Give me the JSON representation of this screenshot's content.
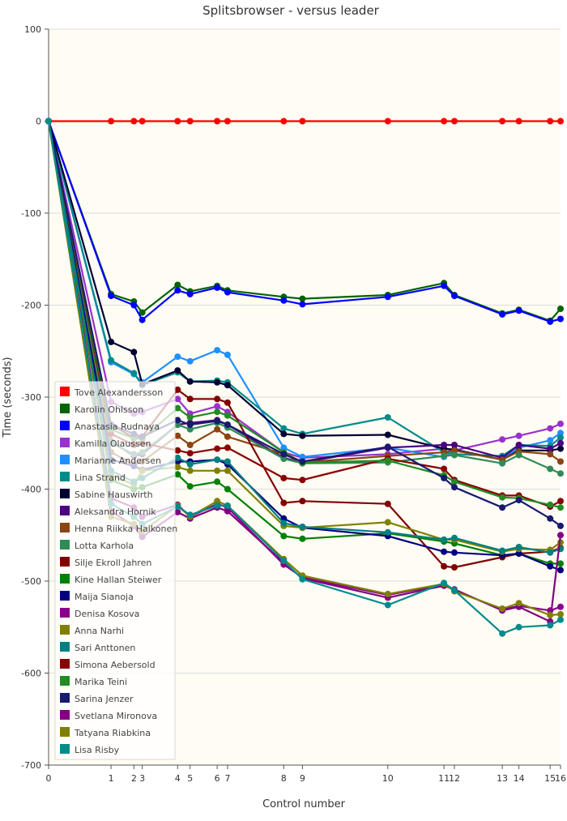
{
  "chart_data": {
    "type": "line",
    "title": "Splitsbrowser - versus leader",
    "xlabel": "Control number",
    "ylabel": "Time (seconds)",
    "xlim": [
      0,
      16
    ],
    "ylim": [
      -700,
      100
    ],
    "yticks": [
      100,
      0,
      -100,
      -200,
      -300,
      -400,
      -500,
      -600,
      -700
    ],
    "x": [
      0,
      1,
      2,
      3,
      4,
      5,
      6,
      7,
      8,
      9,
      10,
      11,
      12,
      13,
      14,
      15,
      16
    ],
    "x_cumulative": [
      0,
      30,
      41,
      45,
      62,
      68,
      81,
      86,
      113,
      122,
      163,
      190,
      195,
      218,
      226,
      241,
      246
    ],
    "grid": true,
    "legend_position": "bottom-left",
    "background_color": "#fffcf4",
    "series": [
      {
        "name": "Tove Alexandersson",
        "color": "#ff0000",
        "values": [
          0,
          0,
          0,
          0,
          0,
          0,
          0,
          0,
          0,
          0,
          0,
          0,
          0,
          0,
          0,
          0,
          0
        ]
      },
      {
        "name": "Karolin Ohlsson",
        "color": "#006400",
        "values": [
          0,
          -188,
          -196,
          -208,
          -178,
          -185,
          -179,
          -184,
          -191,
          -193,
          -189,
          -176,
          -189,
          -209,
          -205,
          -217,
          -204
        ]
      },
      {
        "name": "Anastasia Rudnaya",
        "color": "#0000ff",
        "values": [
          0,
          -190,
          -200,
          -216,
          -184,
          -188,
          -181,
          -186,
          -195,
          -199,
          -191,
          -179,
          -190,
          -210,
          -206,
          -218,
          -215
        ]
      },
      {
        "name": "Kamilla Olaussen",
        "color": "#9932cc",
        "values": [
          0,
          -305,
          -318,
          -316,
          -302,
          -318,
          -310,
          -316,
          -360,
          -366,
          -362,
          -356,
          -358,
          -346,
          -342,
          -334,
          -329
        ]
      },
      {
        "name": "Marianne Andersen",
        "color": "#1e90ff",
        "values": [
          0,
          -262,
          -275,
          -284,
          -256,
          -261,
          -249,
          -254,
          -355,
          -365,
          -355,
          -365,
          -358,
          -368,
          -355,
          -347,
          -339
        ]
      },
      {
        "name": "Lina Strand",
        "color": "#008b8b",
        "values": [
          0,
          -260,
          -274,
          -287,
          -273,
          -283,
          -282,
          -284,
          -334,
          -340,
          -322,
          -360,
          -362,
          -364,
          -352,
          -353,
          -344
        ]
      },
      {
        "name": "Sabine Hauswirth",
        "color": "#000033",
        "values": [
          0,
          -240,
          -251,
          -286,
          -271,
          -283,
          -284,
          -287,
          -340,
          -342,
          -341,
          -356,
          -357,
          -368,
          -358,
          -358,
          -356
        ]
      },
      {
        "name": "Aleksandra Hornik",
        "color": "#4b0082",
        "values": [
          0,
          -348,
          -364,
          -362,
          -330,
          -328,
          -325,
          -330,
          -366,
          -371,
          -355,
          -352,
          -352,
          -366,
          -352,
          -356,
          -350
        ]
      },
      {
        "name": "Henna Riikka Haikonen",
        "color": "#8b4513",
        "values": [
          0,
          -360,
          -373,
          -370,
          -342,
          -352,
          -335,
          -343,
          -362,
          -371,
          -364,
          -360,
          -358,
          -368,
          -359,
          -362,
          -370
        ]
      },
      {
        "name": "Lotta Karhola",
        "color": "#2e8b57",
        "values": [
          0,
          -350,
          -362,
          -360,
          -330,
          -335,
          -328,
          -333,
          -367,
          -372,
          -371,
          -364,
          -363,
          -372,
          -363,
          -378,
          -383
        ]
      },
      {
        "name": "Silje Ekroll Jahren",
        "color": "#800000",
        "values": [
          0,
          -330,
          -344,
          -343,
          -292,
          -302,
          -302,
          -306,
          -415,
          -413,
          -416,
          -484,
          -485,
          -474,
          -470,
          -468,
          -464
        ]
      },
      {
        "name": "Kine Hallan Steiwer",
        "color": "#008000",
        "values": [
          0,
          -390,
          -400,
          -398,
          -384,
          -397,
          -392,
          -400,
          -451,
          -454,
          -448,
          -457,
          -459,
          -472,
          -470,
          -481,
          -481
        ]
      },
      {
        "name": "Maija Sianoja",
        "color": "#000080",
        "values": [
          0,
          -368,
          -375,
          -379,
          -370,
          -370,
          -368,
          -373,
          -432,
          -442,
          -451,
          -468,
          -469,
          -472,
          -470,
          -484,
          -488
        ]
      },
      {
        "name": "Denisa Kosova",
        "color": "#8b008b",
        "values": [
          0,
          -410,
          -420,
          -430,
          -417,
          -430,
          -416,
          -420,
          -482,
          -496,
          -515,
          -504,
          -510,
          -531,
          -527,
          -532,
          -528
        ]
      },
      {
        "name": "Anna Narhi",
        "color": "#808000",
        "values": [
          0,
          -385,
          -395,
          -380,
          -376,
          -380,
          -380,
          -380,
          -440,
          -442,
          -436,
          -455,
          -455,
          -468,
          -465,
          -466,
          -458
        ]
      },
      {
        "name": "Sari Anttonen",
        "color": "#008080",
        "values": [
          0,
          -380,
          -392,
          -388,
          -366,
          -373,
          -368,
          -370,
          -437,
          -441,
          -447,
          -455,
          -453,
          -467,
          -463,
          -469,
          -465
        ]
      },
      {
        "name": "Simona Aebersold",
        "color": "#8b0000",
        "values": [
          0,
          -340,
          -352,
          -350,
          -358,
          -361,
          -356,
          -355,
          -388,
          -390,
          -367,
          -378,
          -390,
          -407,
          -407,
          -419,
          -413
        ]
      },
      {
        "name": "Marika Teini",
        "color": "#228b22",
        "values": [
          0,
          -335,
          -345,
          -345,
          -312,
          -322,
          -316,
          -320,
          -360,
          -371,
          -369,
          -385,
          -392,
          -409,
          -410,
          -417,
          -420
        ]
      },
      {
        "name": "Sarina Jenzer",
        "color": "#191970",
        "values": [
          0,
          -330,
          -340,
          -343,
          -325,
          -330,
          -326,
          -330,
          -362,
          -370,
          -354,
          -388,
          -398,
          -420,
          -412,
          -432,
          -440
        ]
      },
      {
        "name": "Svetlana Mironova",
        "color": "#800080",
        "values": [
          0,
          -424,
          -440,
          -452,
          -425,
          -432,
          -420,
          -424,
          -480,
          -497,
          -518,
          -505,
          -509,
          -532,
          -528,
          -544,
          -450
        ]
      },
      {
        "name": "Tatyana Riabkina",
        "color": "#808000",
        "values": [
          0,
          -430,
          -438,
          -446,
          -418,
          -430,
          -413,
          -418,
          -476,
          -494,
          -514,
          -503,
          -511,
          -530,
          -524,
          -537,
          -536
        ]
      },
      {
        "name": "Lisa Risby",
        "color": "#008b8b",
        "values": [
          0,
          -416,
          -430,
          -438,
          -419,
          -428,
          -418,
          -418,
          -478,
          -498,
          -526,
          -502,
          -510,
          -557,
          -550,
          -548,
          -542
        ]
      }
    ]
  }
}
